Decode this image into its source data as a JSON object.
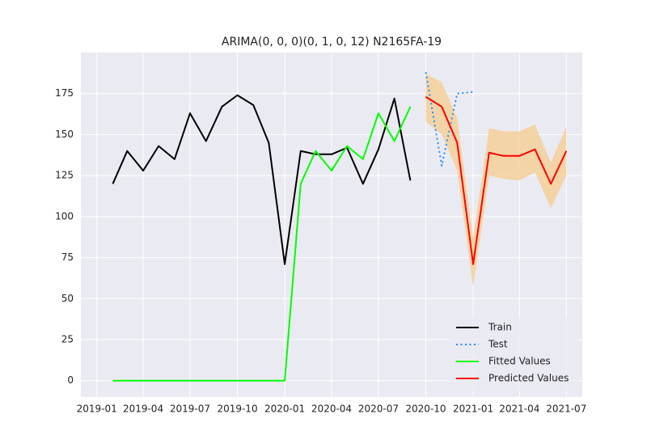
{
  "chart_data": {
    "type": "line",
    "title": "ARIMA(0, 0, 0)(0, 1, 0, 12) N2165FA-19",
    "xlim": [
      "2018-12",
      "2021-08"
    ],
    "xticks": [
      "2019-01",
      "2019-04",
      "2019-07",
      "2019-10",
      "2020-01",
      "2020-04",
      "2020-07",
      "2020-10",
      "2021-01",
      "2021-04",
      "2021-07"
    ],
    "ylim": [
      -10,
      200
    ],
    "yticks": [
      0,
      25,
      50,
      75,
      100,
      125,
      150,
      175
    ],
    "grid": true,
    "legend": "lower right",
    "band": {
      "color": "#f5d09a",
      "x": [
        "2020-10",
        "2020-11",
        "2020-12",
        "2021-01",
        "2021-02",
        "2021-03",
        "2021-04",
        "2021-05",
        "2021-06",
        "2021-07"
      ],
      "lower": [
        158,
        150,
        128,
        57,
        125,
        123,
        122,
        127,
        105,
        125
      ],
      "upper": [
        187,
        182,
        160,
        87,
        154,
        152,
        152,
        156,
        133,
        155
      ]
    },
    "series": [
      {
        "name": "Train",
        "color": "#000000",
        "style": "solid",
        "x": [
          "2019-02",
          "2019-03",
          "2019-04",
          "2019-05",
          "2019-06",
          "2019-07",
          "2019-08",
          "2019-09",
          "2019-10",
          "2019-11",
          "2019-12",
          "2020-01",
          "2020-02",
          "2020-03",
          "2020-04",
          "2020-05",
          "2020-06",
          "2020-07",
          "2020-08",
          "2020-09"
        ],
        "values": [
          120,
          140,
          128,
          143,
          135,
          163,
          146,
          167,
          174,
          168,
          145,
          71,
          140,
          138,
          138,
          142,
          120,
          141,
          172,
          122
        ]
      },
      {
        "name": "Test",
        "color": "#1e8fff",
        "style": "dotted",
        "x": [
          "2020-10",
          "2020-11",
          "2020-12",
          "2021-01"
        ],
        "values": [
          188,
          131,
          175,
          176
        ]
      },
      {
        "name": "Fitted Values",
        "color": "#00ff00",
        "style": "solid",
        "x": [
          "2019-02",
          "2019-03",
          "2019-04",
          "2019-05",
          "2019-06",
          "2019-07",
          "2019-08",
          "2019-09",
          "2019-10",
          "2019-11",
          "2019-12",
          "2020-01",
          "2020-02",
          "2020-03",
          "2020-04",
          "2020-05",
          "2020-06",
          "2020-07",
          "2020-08",
          "2020-09"
        ],
        "values": [
          0,
          0,
          0,
          0,
          0,
          0,
          0,
          0,
          0,
          0,
          0,
          0,
          120,
          140,
          128,
          143,
          135,
          163,
          146,
          167
        ]
      },
      {
        "name": "Predicted Values",
        "color": "#ff0000",
        "style": "solid",
        "x": [
          "2020-10",
          "2020-11",
          "2020-12",
          "2021-01",
          "2021-02",
          "2021-03",
          "2021-04",
          "2021-05",
          "2021-06",
          "2021-07"
        ],
        "values": [
          173,
          167,
          145,
          71,
          139,
          137,
          137,
          141,
          120,
          140
        ]
      }
    ]
  }
}
